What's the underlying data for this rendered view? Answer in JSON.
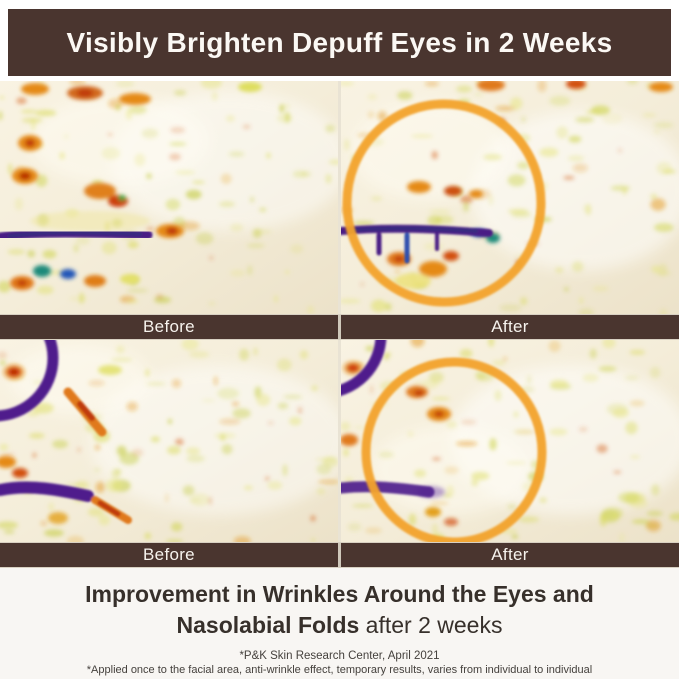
{
  "banner": {
    "title": "Visibly Brighten Depuff Eyes in 2 Weeks"
  },
  "labels": {
    "before": "Before",
    "after": "After"
  },
  "panels": [
    {
      "id": "eyes-before",
      "label": "Before",
      "description": "thermal scan of eye area before use"
    },
    {
      "id": "eyes-after",
      "label": "After",
      "description": "thermal scan of eye area after use, improvement circled"
    },
    {
      "id": "folds-before",
      "label": "Before",
      "description": "thermal scan of nasolabial fold before use"
    },
    {
      "id": "folds-after",
      "label": "After",
      "description": "thermal scan of nasolabial fold after use, improvement circled"
    }
  ],
  "caption": {
    "heading_line1": "Improvement in Wrinkles Around the Eyes and",
    "heading_line2_bold": "Nasolabial Folds",
    "heading_line2_regular": "after 2 weeks",
    "footnote_1": "*P&K Skin Research Center, April 2021",
    "footnote_2": "*Applied once to the facial area, anti-wrinkle effect, temporary results, varies from individual to individual"
  },
  "colors": {
    "banner_background": "#4A352F",
    "label_bar_background": "#4A352F",
    "highlight_circle_orange": "#F2A22B",
    "wrinkle_marker_purple": "#4F1F8C",
    "caption_background": "#F8F6F3",
    "heading_text": "#37302B"
  }
}
